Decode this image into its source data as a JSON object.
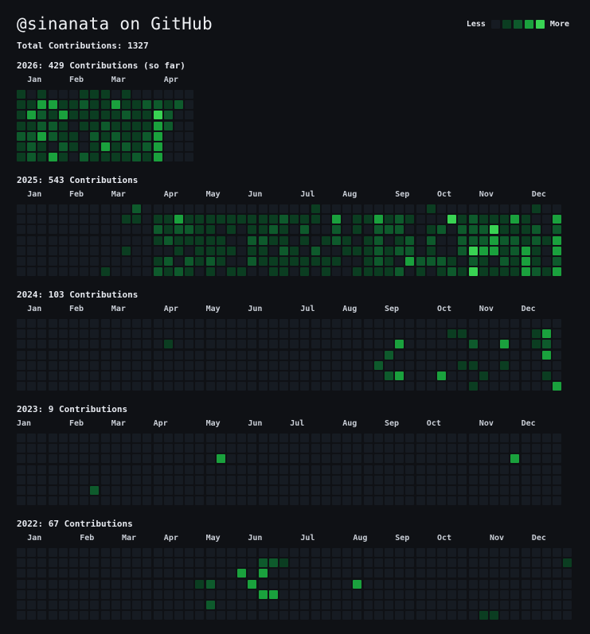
{
  "header": {
    "title": "@sinanata on GitHub",
    "total": "Total Contributions: 1327"
  },
  "legend": {
    "less": "Less",
    "more": "More",
    "colors": [
      "#161b22",
      "#0b3d21",
      "#0e5a2c",
      "#1aa13d",
      "#39d353"
    ]
  },
  "years": [
    {
      "label": "2026: 429 Contributions (so far)",
      "weeks": 17,
      "months": [
        [
          "Jan",
          1
        ],
        [
          "Feb",
          5
        ],
        [
          "Mar",
          9
        ],
        [
          "Apr",
          14
        ]
      ],
      "rows": [
        "10100011101000000",
        "11331121131122120",
        "13213111112114200",
        "11221011211113200",
        "22321102121123000",
        "12102101312123000",
        "12131021111213000"
      ]
    },
    {
      "label": "2025: 543 Contributions",
      "weeks": 52,
      "months": [
        [
          "Jan",
          1
        ],
        [
          "Feb",
          5
        ],
        [
          "Mar",
          9
        ],
        [
          "Apr",
          14
        ],
        [
          "May",
          18
        ],
        [
          "Jun",
          22
        ],
        [
          "Jul",
          27
        ],
        [
          "Aug",
          31
        ],
        [
          "Sep",
          36
        ],
        [
          "Oct",
          40
        ],
        [
          "Nov",
          44
        ],
        [
          "Dec",
          49
        ]
      ],
      "rows": [
        "0000000000020000000000000000100000000001000000000100",
        "0000000000110113111111111211103011312100041211131003",
        "0000000000000212211010112102002010222001202224111202",
        "0000000000000121111100221101012101201202002223221213",
        "0000000000100001011110110210200111212201002433123103",
        "0000000000000120212100211111111001210322210210213102",
        "0000000010000212101011001101010011112010121411113213"
      ]
    },
    {
      "label": "2024: 103 Contributions",
      "weeks": 52,
      "months": [
        [
          "Jan",
          1
        ],
        [
          "Feb",
          5
        ],
        [
          "Mar",
          9
        ],
        [
          "Apr",
          14
        ],
        [
          "May",
          18
        ],
        [
          "Jun",
          22
        ],
        [
          "Jul",
          27
        ],
        [
          "Aug",
          31
        ],
        [
          "Sep",
          35
        ],
        [
          "Oct",
          40
        ],
        [
          "Nov",
          44
        ],
        [
          "Dec",
          48
        ]
      ],
      "rows": [
        "0000000000000000000000000000000000000000000000000000",
        "0000000000000000000000000000000000000000011000000130",
        "0000000000000010000000000000000000003000000200300120",
        "0000000000000000000000000000000000020000000000000030",
        "0000000000000000000000000000000000200000001100100000",
        "0000000000000000000000000000000000023000300010000010",
        "0000000000000000000000000000000000000000000100000003"
      ]
    },
    {
      "label": "2023: 9 Contributions",
      "weeks": 52,
      "months": [
        [
          "Jan",
          0
        ],
        [
          "Feb",
          5
        ],
        [
          "Mar",
          9
        ],
        [
          "Apr",
          13
        ],
        [
          "May",
          18
        ],
        [
          "Jun",
          22
        ],
        [
          "Jul",
          26
        ],
        [
          "Aug",
          31
        ],
        [
          "Sep",
          35
        ],
        [
          "Oct",
          39
        ],
        [
          "Nov",
          44
        ],
        [
          "Dec",
          48
        ]
      ],
      "rows": [
        "0000000000000000000000000000000000000000000000000000",
        "0000000000000000000000000000000000000000000000000000",
        "0000000000000000000300000000000000000000000000030000",
        "0000000000000000000000000000000000000000000000000000",
        "0000000000000000000000000000000000000000000000000000",
        "0000000200000000000000000000000000000000000000000000",
        "0000000000000000000000000000000000000000000000000000"
      ]
    },
    {
      "label": "2022: 67 Contributions",
      "weeks": 53,
      "months": [
        [
          "Jan",
          1
        ],
        [
          "Feb",
          6
        ],
        [
          "Mar",
          10
        ],
        [
          "Apr",
          14
        ],
        [
          "May",
          18
        ],
        [
          "Jun",
          22
        ],
        [
          "Jul",
          27
        ],
        [
          "Aug",
          32
        ],
        [
          "Sep",
          36
        ],
        [
          "Oct",
          40
        ],
        [
          "Nov",
          45
        ],
        [
          "Dec",
          49
        ]
      ],
      "rows": [
        "00000000000000000000000000000000000000000000000000000",
        "00000000000000000000000221000000000000000000000000001",
        "00000000000000000000030300000000000000000000000000000",
        "00000000000000000120003000000000300000000000000000000",
        "00000000000000000000000330000000000000000000000000000",
        "00000000000000000020000000000000000000000000000000000",
        "00000000000000000000000000000000000000000000110000000"
      ]
    }
  ]
}
